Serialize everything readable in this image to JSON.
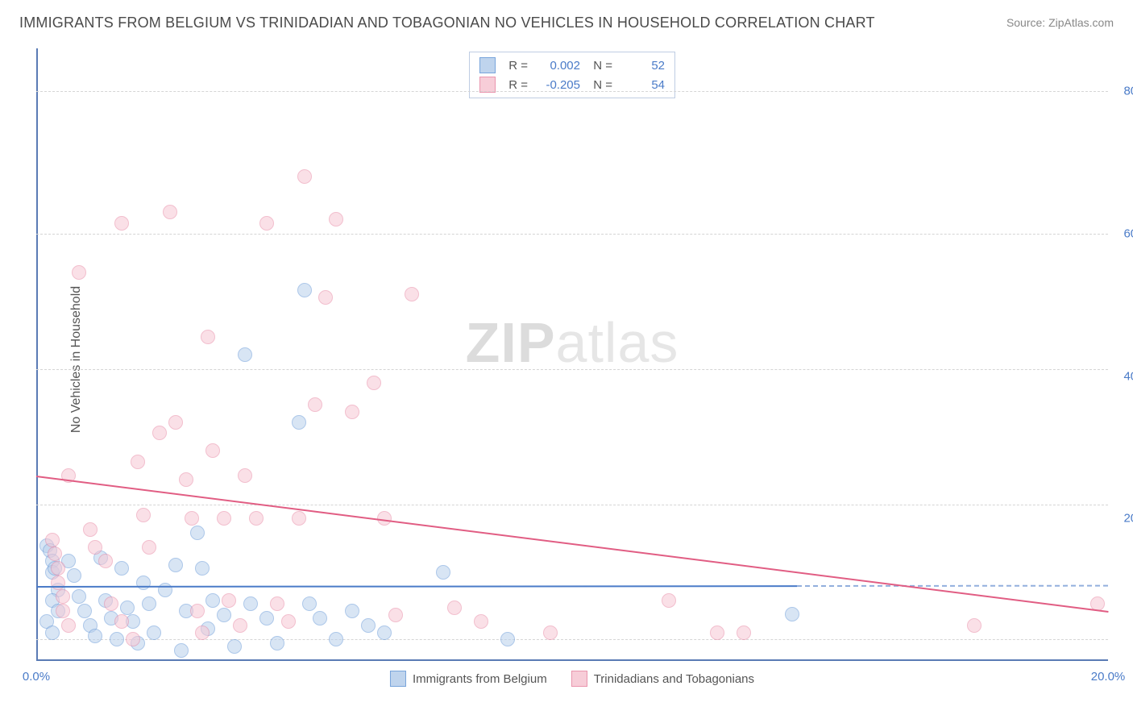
{
  "title": "IMMIGRANTS FROM BELGIUM VS TRINIDADIAN AND TOBAGONIAN NO VEHICLES IN HOUSEHOLD CORRELATION CHART",
  "source_label": "Source:",
  "source_value": "ZipAtlas.com",
  "y_axis_label": "No Vehicles in Household",
  "watermark_a": "ZIP",
  "watermark_b": "atlas",
  "chart": {
    "type": "scatter",
    "xlim": [
      0,
      20
    ],
    "ylim": [
      0,
      86
    ],
    "x_ticks": [
      0,
      20
    ],
    "x_tick_labels": [
      "0.0%",
      "20.0%"
    ],
    "y_ticks": [
      20,
      40,
      60,
      80
    ],
    "y_tick_labels": [
      "20.0%",
      "40.0%",
      "60.0%",
      "80.0%"
    ],
    "grid_lines_y": [
      3,
      22,
      41,
      60,
      80
    ],
    "grid_color": "#d5d5d5",
    "axis_color": "#5a7bb5",
    "background_color": "#ffffff"
  },
  "series": [
    {
      "id": "belgium",
      "label": "Immigrants from Belgium",
      "fill": "#b9d0ec",
      "stroke": "#6a9bd8",
      "fill_opacity": 0.55,
      "marker_radius": 9,
      "R": "0.002",
      "N": "52",
      "trend": {
        "x1": 0,
        "y1": 10.5,
        "x2": 14.2,
        "y2": 10.6,
        "dash_to_x": 20,
        "color": "#4a7bc8"
      },
      "points": [
        [
          0.2,
          16.2
        ],
        [
          0.25,
          15.5
        ],
        [
          0.3,
          14.0
        ],
        [
          0.3,
          12.5
        ],
        [
          0.35,
          13.0
        ],
        [
          0.4,
          10.0
        ],
        [
          0.3,
          8.5
        ],
        [
          0.4,
          7.0
        ],
        [
          0.2,
          5.5
        ],
        [
          0.3,
          4.0
        ],
        [
          0.6,
          14.0
        ],
        [
          0.7,
          12.0
        ],
        [
          0.8,
          9.0
        ],
        [
          0.9,
          7.0
        ],
        [
          1.0,
          5.0
        ],
        [
          1.1,
          3.5
        ],
        [
          1.2,
          14.5
        ],
        [
          1.3,
          8.5
        ],
        [
          1.4,
          6.0
        ],
        [
          1.5,
          3.0
        ],
        [
          1.6,
          13.0
        ],
        [
          1.7,
          7.5
        ],
        [
          1.8,
          5.5
        ],
        [
          1.9,
          2.5
        ],
        [
          2.0,
          11.0
        ],
        [
          2.1,
          8.0
        ],
        [
          2.2,
          4.0
        ],
        [
          2.4,
          10.0
        ],
        [
          2.6,
          13.5
        ],
        [
          2.7,
          1.5
        ],
        [
          2.8,
          7.0
        ],
        [
          3.0,
          18.0
        ],
        [
          3.1,
          13.0
        ],
        [
          3.2,
          4.5
        ],
        [
          3.3,
          8.5
        ],
        [
          3.5,
          6.5
        ],
        [
          3.7,
          2.0
        ],
        [
          3.9,
          43.0
        ],
        [
          4.0,
          8.0
        ],
        [
          4.3,
          6.0
        ],
        [
          4.5,
          2.5
        ],
        [
          4.9,
          33.5
        ],
        [
          5.1,
          8.0
        ],
        [
          5.3,
          6.0
        ],
        [
          5.6,
          3.0
        ],
        [
          5.9,
          7.0
        ],
        [
          6.2,
          5.0
        ],
        [
          6.5,
          4.0
        ],
        [
          7.6,
          12.5
        ],
        [
          8.8,
          3.0
        ],
        [
          14.1,
          6.6
        ],
        [
          5.0,
          52.0
        ]
      ]
    },
    {
      "id": "trinidad",
      "label": "Trinidadians and Tobagonians",
      "fill": "#f7c8d4",
      "stroke": "#e88aa6",
      "fill_opacity": 0.55,
      "marker_radius": 9,
      "R": "-0.205",
      "N": "54",
      "trend": {
        "x1": 0,
        "y1": 26.0,
        "x2": 20,
        "y2": 7.0,
        "color": "#e15d83"
      },
      "points": [
        [
          0.3,
          17.0
        ],
        [
          0.35,
          15.0
        ],
        [
          0.4,
          13.0
        ],
        [
          0.4,
          11.0
        ],
        [
          0.5,
          9.0
        ],
        [
          0.5,
          7.0
        ],
        [
          0.6,
          5.0
        ],
        [
          0.6,
          26.0
        ],
        [
          0.8,
          54.5
        ],
        [
          1.0,
          18.5
        ],
        [
          1.1,
          16.0
        ],
        [
          1.3,
          14.0
        ],
        [
          1.4,
          8.0
        ],
        [
          1.6,
          5.5
        ],
        [
          1.8,
          3.0
        ],
        [
          1.6,
          61.5
        ],
        [
          1.9,
          28.0
        ],
        [
          2.0,
          20.5
        ],
        [
          2.1,
          16.0
        ],
        [
          2.3,
          32.0
        ],
        [
          2.5,
          63.0
        ],
        [
          2.6,
          33.5
        ],
        [
          2.8,
          25.5
        ],
        [
          2.9,
          20.0
        ],
        [
          3.0,
          7.0
        ],
        [
          3.1,
          4.0
        ],
        [
          3.2,
          45.5
        ],
        [
          3.3,
          29.5
        ],
        [
          3.5,
          20.0
        ],
        [
          3.6,
          8.5
        ],
        [
          3.8,
          5.0
        ],
        [
          3.9,
          26.0
        ],
        [
          4.1,
          20.0
        ],
        [
          4.3,
          61.5
        ],
        [
          4.5,
          8.0
        ],
        [
          4.7,
          5.5
        ],
        [
          4.9,
          20.0
        ],
        [
          5.0,
          68.0
        ],
        [
          5.2,
          36.0
        ],
        [
          5.4,
          51.0
        ],
        [
          5.6,
          62.0
        ],
        [
          5.9,
          35.0
        ],
        [
          6.3,
          39.0
        ],
        [
          6.5,
          20.0
        ],
        [
          6.7,
          6.5
        ],
        [
          7.0,
          51.5
        ],
        [
          7.8,
          7.5
        ],
        [
          8.3,
          5.5
        ],
        [
          9.6,
          4.0
        ],
        [
          11.8,
          8.5
        ],
        [
          12.7,
          4.0
        ],
        [
          13.2,
          4.0
        ],
        [
          17.5,
          5.0
        ],
        [
          19.8,
          8.0
        ]
      ]
    }
  ],
  "legend_top_labels": {
    "R": "R =",
    "N": "N ="
  },
  "legend_bottom_labels": [
    "Immigrants from Belgium",
    "Trinidadians and Tobagonians"
  ]
}
